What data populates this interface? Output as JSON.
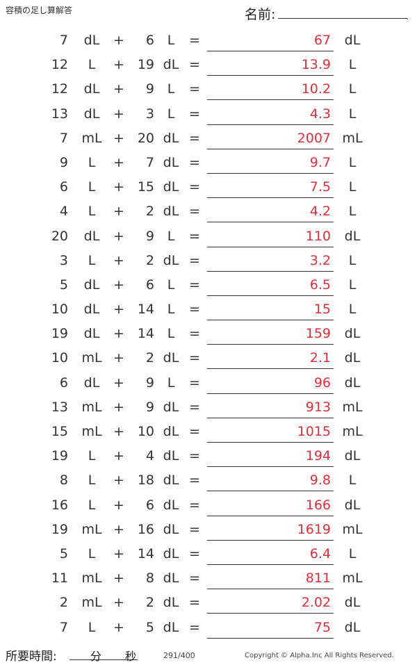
{
  "header": {
    "title": "容積の足し算解答",
    "name_label": "名前:",
    "name_dot": "."
  },
  "problems": [
    {
      "a": "7",
      "ua": "dL",
      "b": "6",
      "ub": "L",
      "ans": "67",
      "uans": "dL"
    },
    {
      "a": "12",
      "ua": "L",
      "b": "19",
      "ub": "dL",
      "ans": "13.9",
      "uans": "L"
    },
    {
      "a": "12",
      "ua": "dL",
      "b": "9",
      "ub": "L",
      "ans": "10.2",
      "uans": "L"
    },
    {
      "a": "13",
      "ua": "dL",
      "b": "3",
      "ub": "L",
      "ans": "4.3",
      "uans": "L"
    },
    {
      "a": "7",
      "ua": "mL",
      "b": "20",
      "ub": "dL",
      "ans": "2007",
      "uans": "mL"
    },
    {
      "a": "9",
      "ua": "L",
      "b": "7",
      "ub": "dL",
      "ans": "9.7",
      "uans": "L"
    },
    {
      "a": "6",
      "ua": "L",
      "b": "15",
      "ub": "dL",
      "ans": "7.5",
      "uans": "L"
    },
    {
      "a": "4",
      "ua": "L",
      "b": "2",
      "ub": "dL",
      "ans": "4.2",
      "uans": "L"
    },
    {
      "a": "20",
      "ua": "dL",
      "b": "9",
      "ub": "L",
      "ans": "110",
      "uans": "dL"
    },
    {
      "a": "3",
      "ua": "L",
      "b": "2",
      "ub": "dL",
      "ans": "3.2",
      "uans": "L"
    },
    {
      "a": "5",
      "ua": "dL",
      "b": "6",
      "ub": "L",
      "ans": "6.5",
      "uans": "L"
    },
    {
      "a": "10",
      "ua": "dL",
      "b": "14",
      "ub": "L",
      "ans": "15",
      "uans": "L"
    },
    {
      "a": "19",
      "ua": "dL",
      "b": "14",
      "ub": "L",
      "ans": "159",
      "uans": "dL"
    },
    {
      "a": "10",
      "ua": "mL",
      "b": "2",
      "ub": "dL",
      "ans": "2.1",
      "uans": "dL"
    },
    {
      "a": "6",
      "ua": "dL",
      "b": "9",
      "ub": "L",
      "ans": "96",
      "uans": "dL"
    },
    {
      "a": "13",
      "ua": "mL",
      "b": "9",
      "ub": "dL",
      "ans": "913",
      "uans": "mL"
    },
    {
      "a": "15",
      "ua": "mL",
      "b": "10",
      "ub": "dL",
      "ans": "1015",
      "uans": "mL"
    },
    {
      "a": "19",
      "ua": "L",
      "b": "4",
      "ub": "dL",
      "ans": "194",
      "uans": "dL"
    },
    {
      "a": "8",
      "ua": "L",
      "b": "18",
      "ub": "dL",
      "ans": "9.8",
      "uans": "L"
    },
    {
      "a": "16",
      "ua": "L",
      "b": "6",
      "ub": "dL",
      "ans": "166",
      "uans": "dL"
    },
    {
      "a": "19",
      "ua": "mL",
      "b": "16",
      "ub": "dL",
      "ans": "1619",
      "uans": "mL"
    },
    {
      "a": "5",
      "ua": "L",
      "b": "14",
      "ub": "dL",
      "ans": "6.4",
      "uans": "L"
    },
    {
      "a": "11",
      "ua": "mL",
      "b": "8",
      "ub": "dL",
      "ans": "811",
      "uans": "mL"
    },
    {
      "a": "2",
      "ua": "mL",
      "b": "2",
      "ub": "dL",
      "ans": "2.02",
      "uans": "dL"
    },
    {
      "a": "7",
      "ua": "L",
      "b": "5",
      "ub": "dL",
      "ans": "75",
      "uans": "dL"
    }
  ],
  "operators": {
    "plus": "+",
    "equals": "="
  },
  "footer": {
    "time_label": "所要時間:",
    "minutes_label": "分",
    "seconds_label": "秒",
    "page": "291/400",
    "copyright": "Copyright © Alpha.Inc All Rights Reserved."
  },
  "colors": {
    "answer": "#e0303a",
    "text": "#333333"
  }
}
